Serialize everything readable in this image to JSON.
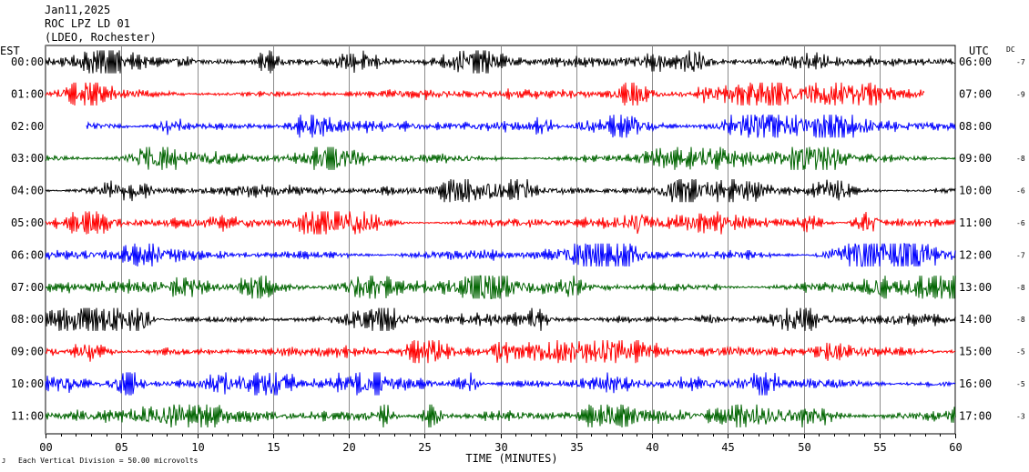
{
  "header": {
    "date": "Jan11,2025",
    "station": "ROC LPZ LD 01",
    "network": "(LDEO, Rochester)"
  },
  "chart_data": {
    "type": "line",
    "title": "",
    "left_axis_label": "EST",
    "right_axis_label": "UTC",
    "dc_label": "DC",
    "xlabel": "TIME (MINUTES)",
    "xlim": [
      0,
      60
    ],
    "x_ticks": [
      "00",
      "05",
      "10",
      "15",
      "20",
      "25",
      "30",
      "35",
      "40",
      "45",
      "50",
      "55",
      "60"
    ],
    "x_tick_values": [
      0,
      5,
      10,
      15,
      20,
      25,
      30,
      35,
      40,
      45,
      50,
      55,
      60
    ],
    "footer_note": "Each Vertical Division =   50.00 microvolts",
    "grid": true,
    "colors": [
      "#000000",
      "#ff0000",
      "#0000ff",
      "#006400"
    ],
    "rows": [
      {
        "est": "00:00",
        "utc": "06:00",
        "dc": "-7",
        "color": "#000000",
        "start_min": 0,
        "end_min": 60,
        "level": 0.55
      },
      {
        "est": "01:00",
        "utc": "07:00",
        "dc": "-9",
        "color": "#ff0000",
        "start_min": 0,
        "end_min": 58,
        "level": 0.55
      },
      {
        "est": "02:00",
        "utc": "08:00",
        "dc": "",
        "color": "#0000ff",
        "start_min": 2.7,
        "end_min": 60,
        "level": 0.55
      },
      {
        "est": "03:00",
        "utc": "09:00",
        "dc": "-8",
        "color": "#006400",
        "start_min": 0,
        "end_min": 60,
        "level": 0.55
      },
      {
        "est": "04:00",
        "utc": "10:00",
        "dc": "-6",
        "color": "#000000",
        "start_min": 0,
        "end_min": 60,
        "level": 0.6
      },
      {
        "est": "05:00",
        "utc": "11:00",
        "dc": "-6",
        "color": "#ff0000",
        "start_min": 0,
        "end_min": 60,
        "level": 0.65
      },
      {
        "est": "06:00",
        "utc": "12:00",
        "dc": "-7",
        "color": "#0000ff",
        "start_min": 0,
        "end_min": 60,
        "level": 0.7
      },
      {
        "est": "07:00",
        "utc": "13:00",
        "dc": "-8",
        "color": "#006400",
        "start_min": 0,
        "end_min": 60,
        "level": 0.7
      },
      {
        "est": "08:00",
        "utc": "14:00",
        "dc": "-8",
        "color": "#000000",
        "start_min": 0,
        "end_min": 60,
        "level": 0.6
      },
      {
        "est": "09:00",
        "utc": "15:00",
        "dc": "-5",
        "color": "#ff0000",
        "start_min": 0,
        "end_min": 60,
        "level": 0.6
      },
      {
        "est": "10:00",
        "utc": "16:00",
        "dc": "-5",
        "color": "#0000ff",
        "start_min": 0,
        "end_min": 60,
        "level": 0.65
      },
      {
        "est": "11:00",
        "utc": "17:00",
        "dc": "-3",
        "color": "#006400",
        "start_min": 0,
        "end_min": 60,
        "level": 0.75
      }
    ]
  }
}
